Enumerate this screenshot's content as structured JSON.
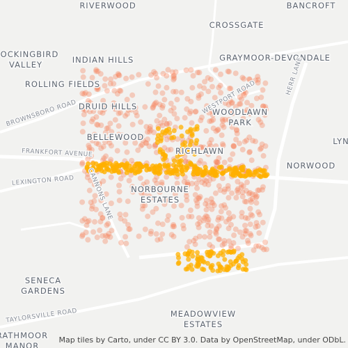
{
  "map": {
    "places": [
      {
        "lines": [
          "RIVERWOOD"
        ]
      },
      {
        "lines": [
          "BANCROFT"
        ]
      },
      {
        "lines": [
          "CROSSGATE"
        ]
      },
      {
        "lines": [
          "MOCKINGBIRD",
          "VALLEY"
        ]
      },
      {
        "lines": [
          "INDIAN HILLS"
        ]
      },
      {
        "lines": [
          "GRAYMOOR-DEVONDALE"
        ]
      },
      {
        "lines": [
          "ROLLING FIELDS"
        ]
      },
      {
        "lines": [
          "DRUID HILLS"
        ]
      },
      {
        "lines": [
          "WOODLAWN",
          "PARK"
        ]
      },
      {
        "lines": [
          "BELLEWOOD"
        ]
      },
      {
        "lines": [
          "RICHLAWN"
        ]
      },
      {
        "lines": [
          "NORWOOD"
        ]
      },
      {
        "lines": [
          "LYN"
        ]
      },
      {
        "lines": [
          "NORBOURNE",
          "ESTATES"
        ]
      },
      {
        "lines": [
          "SENECA",
          "GARDENS"
        ]
      },
      {
        "lines": [
          "MEADOWVIEW",
          "ESTATES"
        ]
      },
      {
        "lines": [
          "RATHMOOR",
          "MANOR"
        ]
      }
    ],
    "roads": [
      "BROWNSBORO ROAD",
      "FRANKFORT AVENUE",
      "LEXINGTON ROAD",
      "CANNONS LANE",
      "WESTPORT ROAD",
      "HERR LANE",
      "TAYLORSVILLE ROAD"
    ],
    "attribution": "Map tiles by Carto, under CC BY 3.0. Data by OpenStreetMap, under ODbL."
  }
}
